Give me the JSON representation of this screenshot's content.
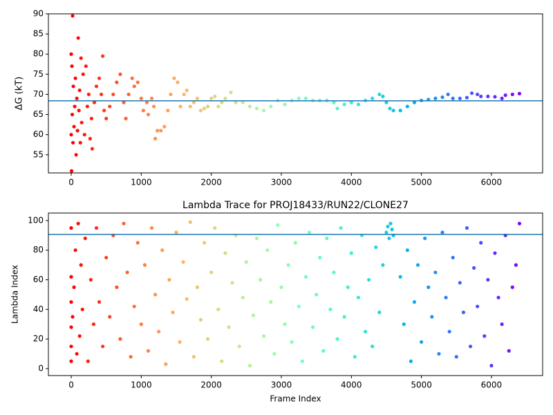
{
  "chart_data": [
    {
      "type": "scatter",
      "ylabel": "ΔG (kT)",
      "x": [
        0,
        0,
        5,
        10,
        15,
        20,
        25,
        30,
        40,
        50,
        60,
        70,
        80,
        90,
        100,
        110,
        120,
        130,
        140,
        150,
        170,
        190,
        210,
        230,
        250,
        270,
        290,
        300,
        330,
        360,
        400,
        430,
        450,
        470,
        500,
        550,
        600,
        650,
        700,
        750,
        780,
        820,
        870,
        900,
        950,
        1000,
        1030,
        1080,
        1100,
        1150,
        1180,
        1200,
        1230,
        1280,
        1330,
        1380,
        1420,
        1470,
        1520,
        1560,
        1610,
        1650,
        1700,
        1750,
        1800,
        1850,
        1900,
        1950,
        2000,
        2050,
        2100,
        2150,
        2200,
        2280,
        2350,
        2450,
        2550,
        2650,
        2750,
        2850,
        2950,
        3050,
        3150,
        3250,
        3350,
        3450,
        3550,
        3650,
        3750,
        3800,
        3900,
        4000,
        4100,
        4200,
        4300,
        4400,
        4450,
        4500,
        4550,
        4600,
        4700,
        4800,
        4900,
        5000,
        5100,
        5200,
        5300,
        5380,
        5450,
        5550,
        5650,
        5720,
        5800,
        5850,
        5950,
        6050,
        6150,
        6200,
        6300,
        6400
      ],
      "values": [
        80,
        60,
        51,
        77,
        65,
        89.5,
        58,
        72,
        62,
        67,
        74,
        55,
        69,
        61,
        84,
        66,
        71,
        58,
        79,
        63,
        75,
        60,
        77,
        67,
        70,
        59,
        64,
        56.5,
        68,
        72,
        74,
        70,
        79.5,
        66,
        64,
        67,
        70,
        73,
        75,
        68,
        64,
        70,
        74,
        72,
        73,
        69,
        66,
        68,
        65,
        69,
        67,
        59,
        61,
        61,
        62,
        66,
        70,
        74,
        73,
        67,
        70,
        71,
        67,
        68,
        69,
        66,
        66.5,
        67,
        69,
        69.5,
        67,
        68,
        69,
        70.5,
        68,
        68,
        67,
        66.5,
        66,
        67,
        68.5,
        67.5,
        68.5,
        69,
        69,
        68.5,
        68.5,
        68.5,
        68,
        66.5,
        67.5,
        68,
        67.5,
        68.5,
        69,
        70,
        69.5,
        68,
        66.5,
        66,
        66,
        67,
        68,
        68.5,
        68.7,
        69,
        69.3,
        70,
        69,
        69,
        69.2,
        70.3,
        70,
        69.5,
        69.5,
        69.4,
        69,
        69.8,
        70,
        70.2
      ],
      "colormap": "rainbow_r",
      "hline": 68.4,
      "hline_color": "#1f77b4",
      "xlim": [
        -326,
        6731
      ],
      "ylim": [
        50.5,
        90
      ],
      "xticks": [
        0,
        1000,
        2000,
        3000,
        4000,
        5000,
        6000
      ],
      "yticks": [
        55,
        60,
        65,
        70,
        75,
        80,
        85,
        90
      ]
    },
    {
      "type": "scatter",
      "title": "Lambda Trace for PROJ18433/RUN22/CLONE27",
      "xlabel": "Frame Index",
      "ylabel": "Lambda Index",
      "x": [
        0,
        0,
        0,
        0,
        0,
        0,
        20,
        40,
        60,
        80,
        100,
        120,
        140,
        160,
        200,
        240,
        280,
        320,
        360,
        400,
        450,
        500,
        550,
        600,
        650,
        700,
        750,
        800,
        850,
        900,
        950,
        1000,
        1050,
        1100,
        1150,
        1200,
        1250,
        1300,
        1350,
        1400,
        1450,
        1500,
        1550,
        1600,
        1650,
        1700,
        1750,
        1800,
        1850,
        1900,
        1950,
        2000,
        2050,
        2100,
        2150,
        2200,
        2250,
        2300,
        2350,
        2400,
        2450,
        2500,
        2550,
        2600,
        2650,
        2700,
        2750,
        2800,
        2850,
        2900,
        2950,
        3000,
        3050,
        3100,
        3150,
        3200,
        3250,
        3300,
        3350,
        3400,
        3450,
        3500,
        3550,
        3600,
        3650,
        3700,
        3750,
        3800,
        3850,
        3900,
        3950,
        4000,
        4050,
        4100,
        4150,
        4200,
        4250,
        4300,
        4350,
        4400,
        4450,
        4500,
        4520,
        4540,
        4560,
        4580,
        4600,
        4700,
        4750,
        4800,
        4850,
        4900,
        4950,
        5000,
        5050,
        5100,
        5150,
        5200,
        5250,
        5300,
        5350,
        5400,
        5450,
        5500,
        5550,
        5600,
        5650,
        5700,
        5750,
        5800,
        5850,
        5900,
        5950,
        6000,
        6050,
        6100,
        6150,
        6200,
        6250,
        6300,
        6350,
        6400
      ],
      "values": [
        5,
        15,
        28,
        45,
        62,
        95,
        35,
        55,
        80,
        10,
        98,
        22,
        70,
        40,
        88,
        5,
        60,
        30,
        95,
        45,
        15,
        75,
        35,
        90,
        55,
        20,
        98,
        65,
        8,
        42,
        85,
        30,
        70,
        12,
        95,
        50,
        25,
        80,
        3,
        60,
        38,
        92,
        18,
        72,
        47,
        99,
        8,
        55,
        33,
        85,
        20,
        65,
        95,
        40,
        5,
        78,
        28,
        58,
        90,
        15,
        48,
        72,
        2,
        36,
        88,
        60,
        22,
        80,
        45,
        10,
        97,
        55,
        30,
        70,
        18,
        85,
        42,
        5,
        62,
        92,
        28,
        50,
        75,
        12,
        88,
        40,
        65,
        20,
        95,
        35,
        55,
        78,
        8,
        48,
        90,
        25,
        60,
        15,
        82,
        38,
        70,
        92,
        96,
        88,
        98,
        94,
        90,
        62,
        30,
        80,
        5,
        45,
        70,
        18,
        88,
        55,
        35,
        65,
        10,
        92,
        48,
        25,
        75,
        8,
        58,
        38,
        95,
        15,
        68,
        42,
        85,
        22,
        60,
        2,
        78,
        48,
        30,
        90,
        12,
        55,
        70,
        98
      ],
      "colormap": "rainbow_r",
      "hline": 90.7,
      "hline_color": "#1f77b4",
      "xlim": [
        -326,
        6731
      ],
      "ylim": [
        -4.7,
        105.1
      ],
      "xticks": [
        0,
        1000,
        2000,
        3000,
        4000,
        5000,
        6000
      ],
      "yticks": [
        0,
        20,
        40,
        60,
        80,
        100
      ]
    }
  ]
}
